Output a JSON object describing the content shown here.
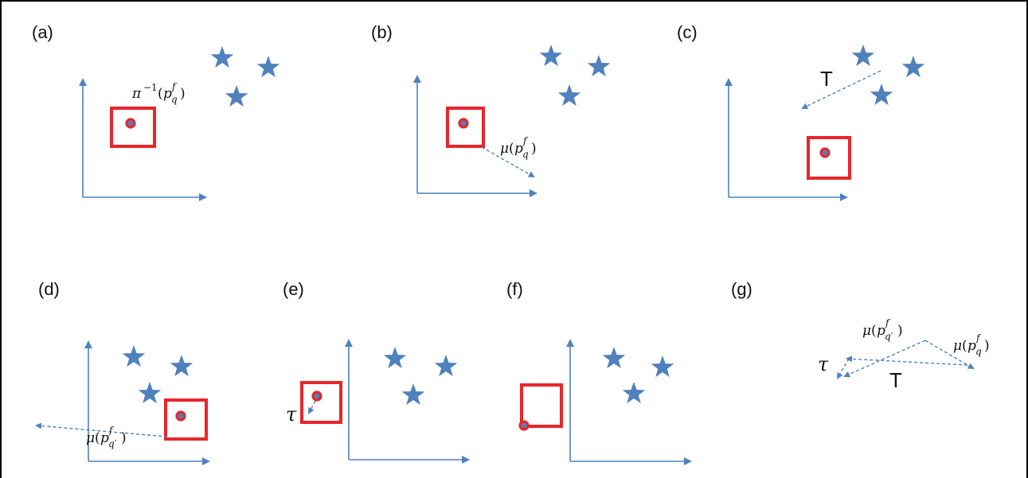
{
  "panels": [
    {
      "label": "(a)",
      "annotation": "π⁻¹(p_q^f)"
    },
    {
      "label": "(b)",
      "annotation": "μ(p_q^f)"
    },
    {
      "label": "(c)",
      "annotation": "T"
    },
    {
      "label": "(d)",
      "annotation": "μ(p_q'^f)"
    },
    {
      "label": "(e)",
      "annotation": "τ"
    },
    {
      "label": "(f)",
      "annotation": ""
    },
    {
      "label": "(g)",
      "annotations": {
        "mu_q_prime": "μ(p_q'^f)",
        "mu_q": "μ(p_q^f)",
        "tau": "τ",
        "T": "T"
      }
    }
  ],
  "colors": {
    "axis": "#4f81bd",
    "box": "#e8262a",
    "star": "#4f81bd",
    "text": "#111111"
  },
  "icons": {
    "marker": "star-icon",
    "point": "dot-icon"
  }
}
